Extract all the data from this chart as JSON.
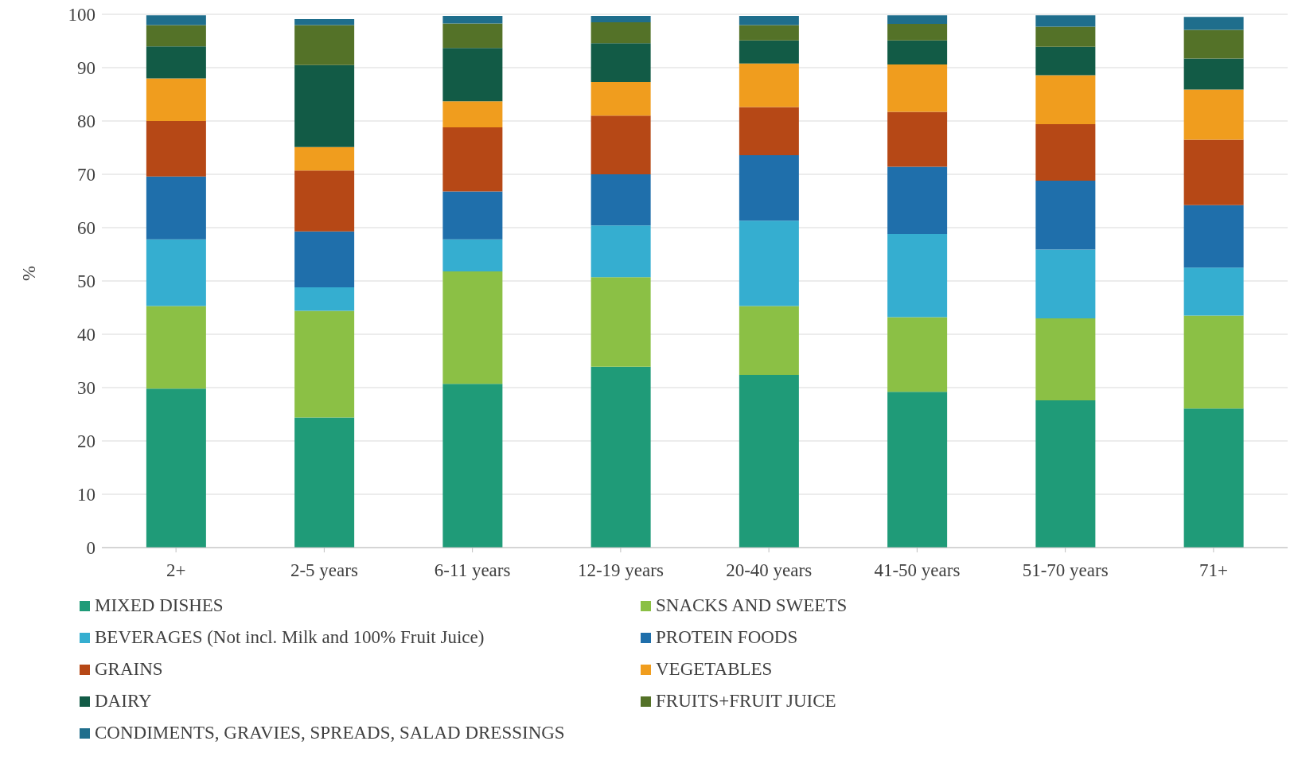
{
  "chart_data": {
    "type": "bar",
    "stacked": true,
    "ylabel": "%",
    "categories": [
      "2+",
      "2-5 years",
      "6-11 years",
      "12-19 years",
      "20-40 years",
      "41-50 years",
      "51-70 years",
      "71+"
    ],
    "ylim": [
      0,
      100
    ],
    "yticks": [
      0,
      10,
      20,
      30,
      40,
      50,
      60,
      70,
      80,
      90,
      100
    ],
    "grid": "y",
    "legend": "bottom",
    "series": [
      {
        "name": "MIXED DISHES",
        "color": "#1f9b78",
        "values": [
          29.8,
          24.4,
          30.7,
          33.9,
          32.4,
          29.2,
          27.6,
          26.1
        ]
      },
      {
        "name": "SNACKS AND SWEETS",
        "color": "#8bc045",
        "values": [
          15.5,
          20.0,
          21.1,
          16.8,
          12.9,
          14.0,
          15.4,
          17.4
        ]
      },
      {
        "name": "BEVERAGES (Not incl. Milk and 100% Fruit Juice)",
        "color": "#35aed0",
        "values": [
          12.5,
          4.4,
          6.0,
          9.7,
          16.0,
          15.6,
          12.9,
          9.0
        ]
      },
      {
        "name": "PROTEIN FOODS",
        "color": "#1f6fab",
        "values": [
          11.8,
          10.5,
          9.0,
          9.6,
          12.3,
          12.6,
          12.9,
          11.7
        ]
      },
      {
        "name": "GRAINS",
        "color": "#b64816",
        "values": [
          10.4,
          11.4,
          12.0,
          11.0,
          9.0,
          10.3,
          10.6,
          12.3
        ]
      },
      {
        "name": "VEGETABLES",
        "color": "#f09d1e",
        "values": [
          8.0,
          4.4,
          4.9,
          6.3,
          8.2,
          8.9,
          9.2,
          9.4
        ]
      },
      {
        "name": "DAIRY",
        "color": "#125b46",
        "values": [
          6.0,
          15.4,
          10.0,
          7.3,
          4.3,
          4.5,
          5.3,
          5.8
        ]
      },
      {
        "name": "FRUITS+FRUIT JUICE",
        "color": "#547228",
        "values": [
          4.0,
          7.5,
          4.6,
          3.9,
          2.9,
          3.1,
          3.8,
          5.4
        ]
      },
      {
        "name": "CONDIMENTS, GRAVIES, SPREADS, SALAD DRESSINGS",
        "color": "#1f6e8c",
        "values": [
          1.8,
          1.1,
          1.4,
          1.2,
          1.7,
          1.6,
          2.1,
          2.4
        ]
      }
    ]
  }
}
